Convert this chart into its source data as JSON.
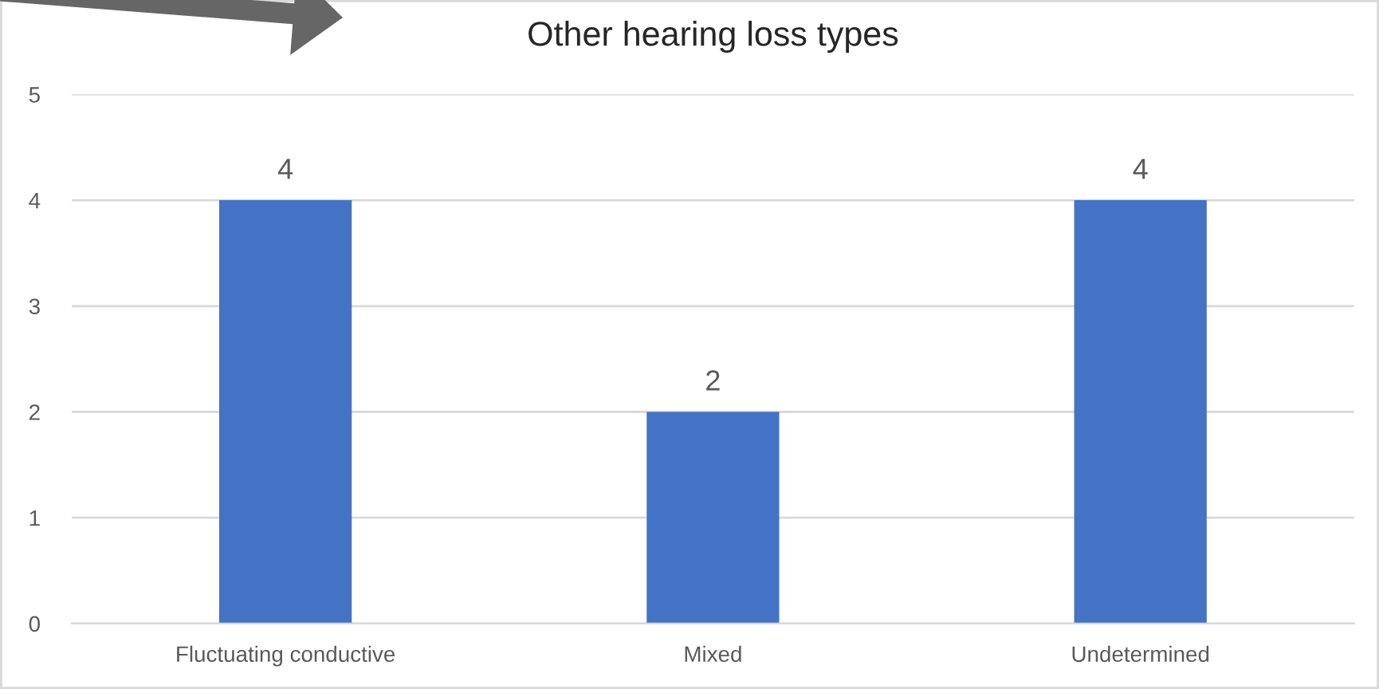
{
  "chart_data": {
    "type": "bar",
    "title": "Other hearing loss types",
    "categories": [
      "Fluctuating conductive",
      "Mixed",
      "Undetermined"
    ],
    "values": [
      4,
      2,
      4
    ],
    "color": "#4472c4",
    "ylim": [
      0,
      5
    ],
    "yticks": [
      0,
      1,
      2,
      3,
      4,
      5
    ],
    "grid": "y",
    "data_labels": true
  }
}
